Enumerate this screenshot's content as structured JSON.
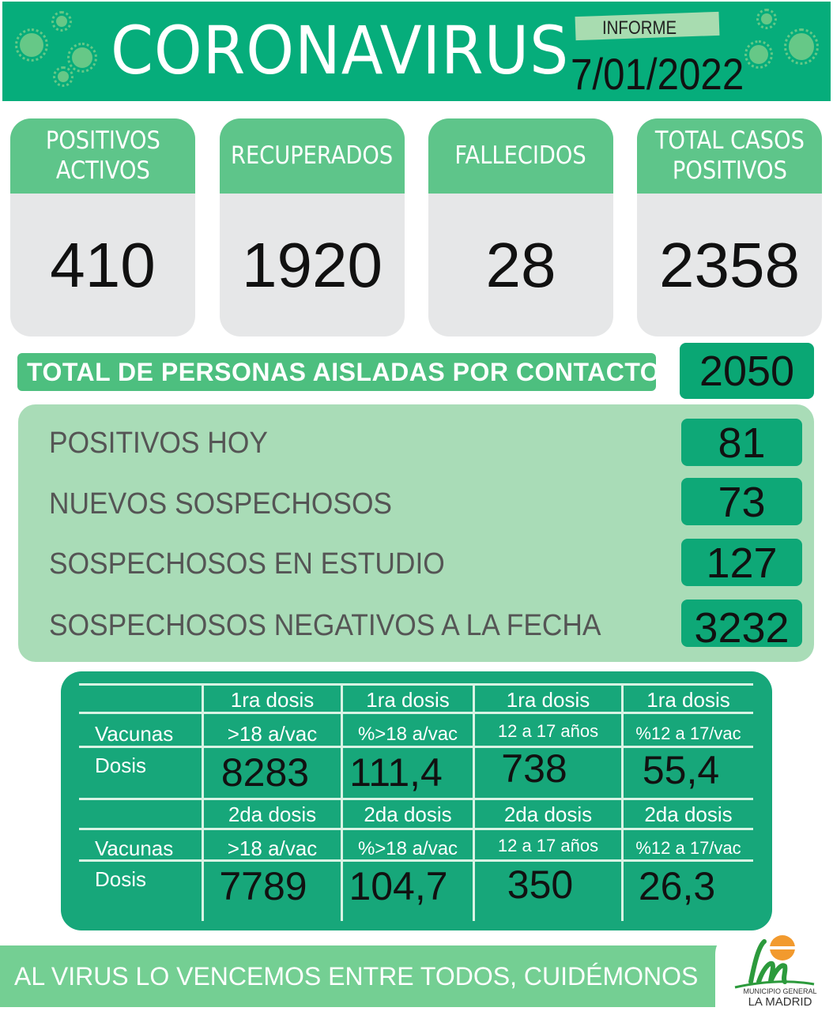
{
  "header": {
    "title": "CORONAVIRUS",
    "report_label": "INFORME",
    "date": "7/01/2022"
  },
  "cards": [
    {
      "label": "POSITIVOS\nACTIVOS",
      "value": "410"
    },
    {
      "label": "RECUPERADOS",
      "value": "1920"
    },
    {
      "label": "FALLECIDOS",
      "value": "28"
    },
    {
      "label": "TOTAL CASOS\nPOSITIVOS",
      "value": "2358"
    }
  ],
  "isolated": {
    "label": "TOTAL DE PERSONAS AISLADAS POR CONTACTO",
    "value": "2050"
  },
  "daily": [
    {
      "label": "POSITIVOS HOY",
      "value": "81"
    },
    {
      "label": "NUEVOS SOSPECHOSOS",
      "value": "73"
    },
    {
      "label": "SOSPECHOSOS EN ESTUDIO",
      "value": "127"
    },
    {
      "label": "SOSPECHOSOS NEGATIVOS A LA FECHA",
      "value": "3232"
    }
  ],
  "vaccines": {
    "row_label_1": "Vacunas",
    "row_label_2": "Dosis",
    "blocks": [
      {
        "dose": "1ra dosis",
        "columns": [
          {
            "sub": ">18 a/vac",
            "value": "8283"
          },
          {
            "sub": "%>18 a/vac",
            "value": "111,4"
          },
          {
            "sub": "12 a 17 años",
            "value": "738"
          },
          {
            "sub": "%12 a 17/vac",
            "value": "55,4"
          }
        ]
      },
      {
        "dose": "2da dosis",
        "columns": [
          {
            "sub": ">18 a/vac",
            "value": "7789"
          },
          {
            "sub": "%>18 a/vac",
            "value": "104,7"
          },
          {
            "sub": "12 a 17 años",
            "value": "350"
          },
          {
            "sub": "%12 a 17/vac",
            "value": "26,3"
          }
        ]
      }
    ]
  },
  "footer": {
    "slogan": "AL VIRUS LO VENCEMOS ENTRE TODOS, CUIDÉMONOS"
  },
  "logo": {
    "line1": "MUNICIPIO GENERAL",
    "line2": "LA MADRID"
  },
  "colors": {
    "primary_green": "#06ad7b",
    "card_header": "#5ec58a",
    "panel": "#a9dcb7",
    "footer": "#74cf93"
  }
}
